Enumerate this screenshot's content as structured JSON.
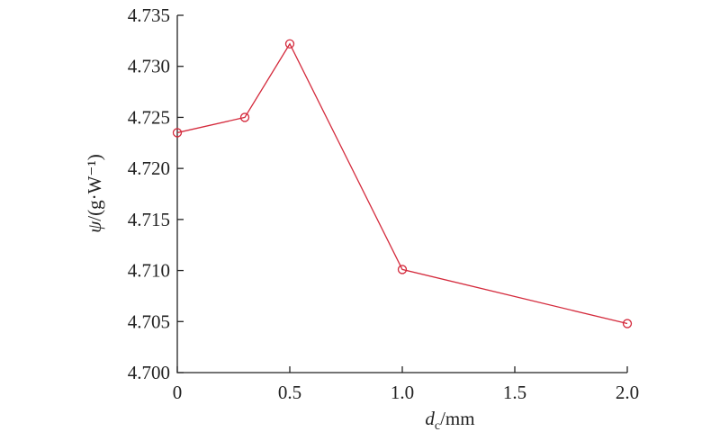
{
  "chart_data": {
    "type": "line",
    "x_label": {
      "symbol": "d",
      "subscript": "c",
      "unit": "/mm"
    },
    "y_label": {
      "symbol": "ψ",
      "unit": "/(g·W⁻¹)"
    },
    "x": [
      0,
      0.3,
      0.5,
      1.0,
      2.0
    ],
    "series": [
      {
        "color": "#d42a3c",
        "values": [
          4.7235,
          4.725,
          4.7322,
          4.7101,
          4.7048
        ]
      }
    ],
    "xlim": [
      0,
      2.0
    ],
    "xticks": [
      0,
      0.5,
      {
        "value": 1.0,
        "label": "1.0"
      },
      1.5,
      {
        "value": 2.0,
        "label": "2.0"
      }
    ],
    "ylim": [
      4.7,
      4.735
    ],
    "yticks": [
      {
        "value": 4.7,
        "label": "4.700"
      },
      4.705,
      {
        "value": 4.71,
        "label": "4.710"
      },
      4.715,
      {
        "value": 4.72,
        "label": "4.720"
      },
      4.725,
      {
        "value": 4.73,
        "label": "4.730"
      },
      4.735
    ]
  }
}
